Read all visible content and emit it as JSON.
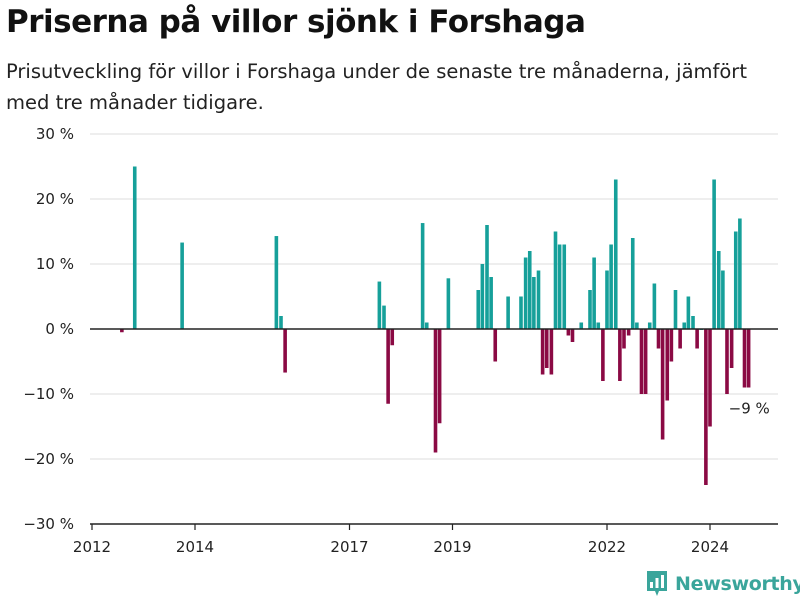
{
  "brand": {
    "name": "Newsworthy",
    "color": "#3aa59b"
  },
  "colors": {
    "positive": "#16a09a",
    "negative": "#8b0a44",
    "grid": "#dddddd",
    "axis": "#222222"
  },
  "chart_data": {
    "type": "bar",
    "title": "Priserna på villor sjönk i Forshaga",
    "subtitle": "Prisutveckling för villor i Forshaga under de senaste tre månaderna, jämfört med tre månader tidigare.",
    "xlabel": "",
    "ylabel": "",
    "ylim": [
      -30,
      30
    ],
    "xlim": [
      2012.0,
      2025.5
    ],
    "y_ticks": [
      30,
      20,
      10,
      0,
      -10,
      -20,
      -30
    ],
    "y_tick_labels": [
      "30 %",
      "20 %",
      "10 %",
      "0 %",
      "−10 %",
      "−20 %",
      "−30 %"
    ],
    "x_ticks": [
      2012,
      2014,
      2017,
      2019,
      2022,
      2024
    ],
    "x_tick_labels": [
      "2012",
      "2014",
      "2017",
      "2019",
      "2022",
      "2024"
    ],
    "grid": true,
    "annotations": [
      {
        "text": "−9 %",
        "x": 2024.75,
        "y": -9
      }
    ],
    "x": [
      2012.58,
      2012.83,
      2013.75,
      2015.58,
      2015.67,
      2015.75,
      2017.58,
      2017.67,
      2017.75,
      2017.83,
      2018.42,
      2018.5,
      2018.67,
      2018.75,
      2018.92,
      2019.5,
      2019.58,
      2019.67,
      2019.75,
      2019.83,
      2020.08,
      2020.33,
      2020.42,
      2020.5,
      2020.58,
      2020.67,
      2020.75,
      2020.83,
      2020.92,
      2021.0,
      2021.08,
      2021.17,
      2021.25,
      2021.33,
      2021.5,
      2021.67,
      2021.75,
      2021.83,
      2021.92,
      2022.0,
      2022.08,
      2022.17,
      2022.25,
      2022.33,
      2022.42,
      2022.5,
      2022.58,
      2022.67,
      2022.75,
      2022.83,
      2022.92,
      2023.0,
      2023.08,
      2023.17,
      2023.25,
      2023.33,
      2023.42,
      2023.5,
      2023.58,
      2023.67,
      2023.75,
      2023.83,
      2023.92,
      2024.0,
      2024.08,
      2024.17,
      2024.25,
      2024.33,
      2024.42,
      2024.5,
      2024.58,
      2024.67,
      2024.75
    ],
    "values": [
      -0.5,
      25,
      13.3,
      14.3,
      2,
      -6.7,
      7.3,
      3.6,
      -11.5,
      -2.5,
      16.3,
      1,
      -19,
      -14.5,
      7.8,
      6,
      10,
      16,
      8,
      -5,
      5,
      5,
      11,
      12,
      8,
      9,
      -7,
      -6,
      -7,
      15,
      13,
      13,
      -1,
      -2,
      1,
      6,
      11,
      1,
      -8,
      9,
      13,
      23,
      -8,
      -3,
      -1,
      14,
      1,
      -10,
      -10,
      1,
      7,
      -3,
      -17,
      -11,
      -5,
      6,
      -3,
      1,
      5,
      2,
      -3,
      0,
      -24,
      -15,
      23,
      12,
      9,
      -10,
      -6,
      15,
      17,
      -9,
      -9
    ]
  }
}
